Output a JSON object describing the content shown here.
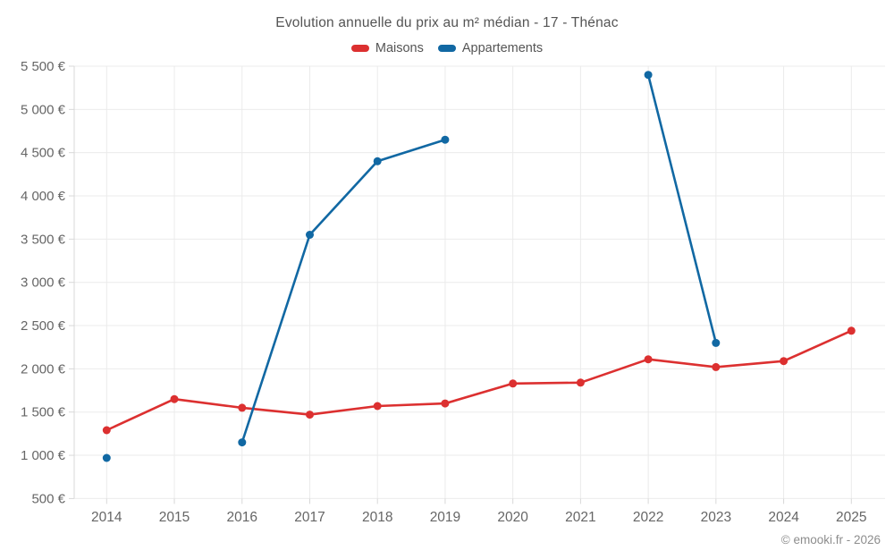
{
  "footer": "© emooki.fr - 2026",
  "colors": {
    "background": "#ffffff",
    "grid": "#ebebeb",
    "axis": "#d8d8d8",
    "tick_text": "#666666",
    "title_text": "#545454",
    "footer_text": "#8d8d8d"
  },
  "chart_data": {
    "type": "line",
    "title": "Evolution annuelle du prix au m² médian - 17 - Thénac",
    "categories": [
      "2014",
      "2015",
      "2016",
      "2017",
      "2018",
      "2019",
      "2020",
      "2021",
      "2022",
      "2023",
      "2024",
      "2025"
    ],
    "series": [
      {
        "name": "Maisons",
        "color": "#dc3030",
        "values": [
          1290,
          1650,
          1550,
          1470,
          1570,
          1600,
          1830,
          1840,
          2110,
          2020,
          2090,
          2440
        ]
      },
      {
        "name": "Appartements",
        "color": "#1168a3",
        "values": [
          970,
          null,
          1150,
          3550,
          4400,
          4650,
          null,
          null,
          5400,
          2300,
          null,
          null
        ]
      }
    ],
    "xlabel": "",
    "ylabel": "",
    "unit": "€",
    "ylim": [
      500,
      5500
    ],
    "y_tick_step": 500,
    "y_tick_labels": [
      "500 €",
      "1 000 €",
      "1 500 €",
      "2 000 €",
      "2 500 €",
      "3 000 €",
      "3 500 €",
      "4 000 €",
      "4 500 €",
      "5 000 €",
      "5 500 €"
    ],
    "grid": true,
    "legend_position": "top"
  }
}
